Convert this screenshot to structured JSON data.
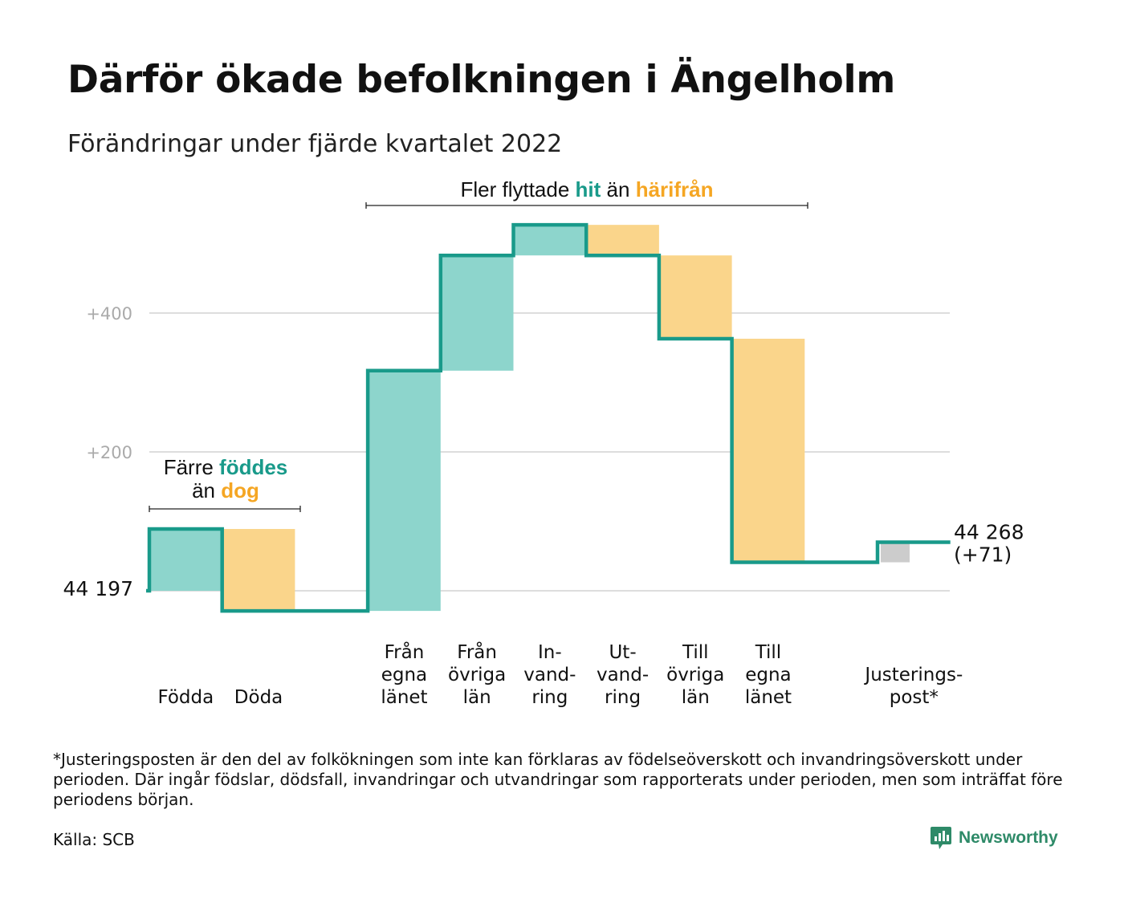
{
  "title": "Därför ökade befolkningen i Ängelholm",
  "subtitle": "Förändringar under fjärde kvartalet 2022",
  "chart_data": {
    "type": "waterfall",
    "start": {
      "value": 44197,
      "label": "44 197"
    },
    "end": {
      "label_line1": "44 268",
      "label_line2": "(+71)",
      "change": 71
    },
    "yticks": [
      {
        "value": 200,
        "label": "+200"
      },
      {
        "value": 400,
        "label": "+400"
      }
    ],
    "steps": [
      {
        "key": "fodda",
        "lines": [
          "Födda"
        ],
        "change": 89,
        "kind": "in"
      },
      {
        "key": "doda",
        "lines": [
          "Döda"
        ],
        "change": -118,
        "kind": "out"
      },
      {
        "key": "gap",
        "lines": [],
        "change": 0,
        "kind": "none"
      },
      {
        "key": "fran-egna-lanet",
        "lines": [
          "Från",
          "egna",
          "länet"
        ],
        "change": 346,
        "kind": "in"
      },
      {
        "key": "fran-ovriga-lan",
        "lines": [
          "Från",
          "övriga",
          "län"
        ],
        "change": 166,
        "kind": "in"
      },
      {
        "key": "invandring",
        "lines": [
          "In-",
          "vand-",
          "ring"
        ],
        "change": 44,
        "kind": "in"
      },
      {
        "key": "utvandring",
        "lines": [
          "Ut-",
          "vand-",
          "ring"
        ],
        "change": -44,
        "kind": "out"
      },
      {
        "key": "till-ovriga-lan",
        "lines": [
          "Till",
          "övriga",
          "län"
        ],
        "change": -120,
        "kind": "out"
      },
      {
        "key": "till-egna-lanet",
        "lines": [
          "Till",
          "egna",
          "länet"
        ],
        "change": -322,
        "kind": "out"
      },
      {
        "key": "gap2",
        "lines": [],
        "change": 0,
        "kind": "none"
      },
      {
        "key": "justeringspost",
        "lines": [
          "Justerings-",
          "post*"
        ],
        "change": 29,
        "kind": "adjust"
      }
    ],
    "annotations": {
      "births": {
        "line1_pre": "Färre ",
        "line1_em": "föddes",
        "line2_pre": "än ",
        "line2_em": "dog"
      },
      "moves": {
        "pre": "Fler flyttade ",
        "em1": "hit",
        "mid": " än ",
        "em2": "härifrån"
      }
    },
    "colors": {
      "line": "#199a8a",
      "in": "#8dd5cc",
      "out": "#fad58b",
      "adjust": "#cccccc",
      "grid": "#dddddd",
      "teal_text": "#199a8a",
      "orange_text": "#f5a623"
    }
  },
  "footnote": "*Justeringsposten är den del av folkökningen som inte kan förklaras av födelseöverskott och invandringsöverskott under perioden. Där ingår födslar, dödsfall, invandringar och utvandringar som rapporterats under perioden, men som inträffat före periodens början.",
  "source": "Källa: SCB",
  "logo": {
    "text": "Newsworthy",
    "icon": "newsworthy-logo-icon"
  }
}
